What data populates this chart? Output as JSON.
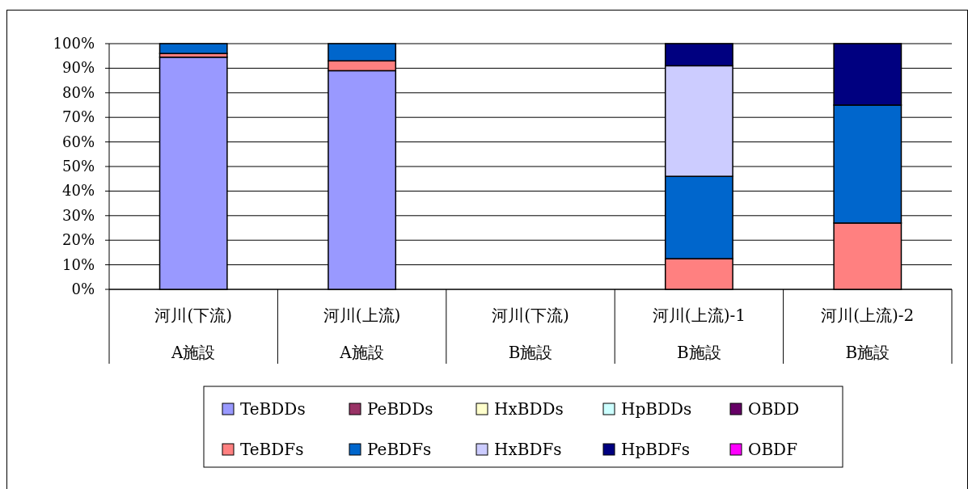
{
  "chart_data": {
    "type": "bar",
    "stacked": true,
    "categories": [
      "河川(下流)\nA施設",
      "河川(上流)\nA施設",
      "河川(下流)\nB施設",
      "河川(上流)-1\nB施設",
      "河川(上流)-2\nB施設"
    ],
    "ylim": [
      0,
      100
    ],
    "yticks": [
      {
        "value": 0,
        "label": "0%"
      },
      {
        "value": 10,
        "label": "10%"
      },
      {
        "value": 20,
        "label": "20%"
      },
      {
        "value": 30,
        "label": "30%"
      },
      {
        "value": 40,
        "label": "40%"
      },
      {
        "value": 50,
        "label": "50%"
      },
      {
        "value": 60,
        "label": "60%"
      },
      {
        "value": 70,
        "label": "70%"
      },
      {
        "value": 80,
        "label": "80%"
      },
      {
        "value": 90,
        "label": "90%"
      },
      {
        "value": 100,
        "label": "100%"
      }
    ],
    "grid": "y",
    "legend": "bottom",
    "series": [
      {
        "name": "TeBDDs",
        "color": "#9999ff",
        "values": [
          94.5,
          89,
          0,
          0,
          0
        ]
      },
      {
        "name": "PeBDDs",
        "color": "#993366",
        "values": [
          0,
          0,
          0,
          0,
          0
        ]
      },
      {
        "name": "HxBDDs",
        "color": "#ffffcc",
        "values": [
          0,
          0,
          0,
          0,
          0
        ]
      },
      {
        "name": "HpBDDs",
        "color": "#ccffff",
        "values": [
          0,
          0,
          0,
          0,
          0
        ]
      },
      {
        "name": "OBDD",
        "color": "#660066",
        "values": [
          0,
          0,
          0,
          0,
          0
        ]
      },
      {
        "name": "TeBDFs",
        "color": "#ff8080",
        "values": [
          1.5,
          4,
          0,
          12.5,
          27
        ]
      },
      {
        "name": "PeBDFs",
        "color": "#0066cc",
        "values": [
          4,
          7,
          0,
          33.5,
          48
        ]
      },
      {
        "name": "HxBDFs",
        "color": "#ccccff",
        "values": [
          0,
          0,
          0,
          45,
          0
        ]
      },
      {
        "name": "HpBDFs",
        "color": "#000080",
        "values": [
          0,
          0,
          0,
          9,
          25
        ]
      },
      {
        "name": "OBDF",
        "color": "#ff00ff",
        "values": [
          0,
          0,
          0,
          0,
          0
        ]
      }
    ]
  }
}
